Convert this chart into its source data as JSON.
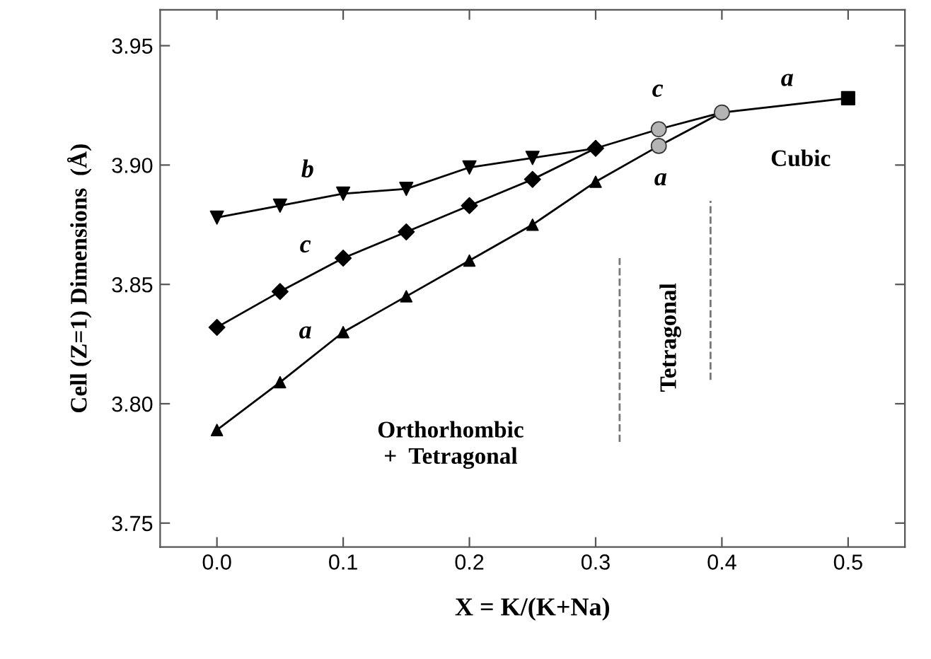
{
  "chart_data": {
    "type": "line",
    "xlabel": "X = K/(K+Na)",
    "ylabel": "Cell (Z=1) Dimensions  (Å)",
    "xlim": [
      -0.045,
      0.545
    ],
    "ylim": [
      3.74,
      3.965
    ],
    "xticks": [
      {
        "value": 0,
        "label": "0.0"
      },
      0.1,
      0.2,
      0.3,
      0.4,
      0.5
    ],
    "yticks": [
      3.75,
      {
        "value": 3.8,
        "label": "3.80"
      },
      3.85,
      {
        "value": 3.9,
        "label": "3.90"
      },
      3.95
    ],
    "grid": false,
    "legend": false,
    "line_style": "solid",
    "series": [
      {
        "color": "#000000",
        "x": [
          0,
          0.05,
          0.1,
          0.15,
          0.2,
          0.25,
          0.3
        ],
        "values": [
          3.878,
          3.883,
          3.888,
          3.89,
          3.899,
          3.903,
          3.907
        ]
      },
      {
        "color": "#000000",
        "x": [
          0,
          0.05,
          0.1,
          0.15,
          0.2,
          0.25,
          0.3,
          0.35,
          0.4
        ],
        "values": [
          3.832,
          3.847,
          3.861,
          3.872,
          3.883,
          3.894,
          3.907,
          3.915,
          3.922
        ]
      },
      {
        "color": "#000000",
        "x": [
          0,
          0.05,
          0.1,
          0.15,
          0.2,
          0.25,
          0.3,
          0.35,
          0.4
        ],
        "values": [
          3.789,
          3.809,
          3.83,
          3.845,
          3.86,
          3.875,
          3.893,
          3.908,
          3.922
        ]
      },
      {
        "color": "#000000",
        "x": [
          0.4,
          0.5
        ],
        "values": [
          3.922,
          3.928
        ]
      },
      {
        "type": "scatter",
        "marker": "triangle_down",
        "color": "#000000",
        "x": [
          0,
          0.05,
          0.1,
          0.15,
          0.2,
          0.25
        ],
        "values": [
          3.878,
          3.883,
          3.888,
          3.89,
          3.899,
          3.903
        ]
      },
      {
        "type": "scatter",
        "marker": "diamond",
        "color": "#000000",
        "x": [
          0,
          0.05,
          0.1,
          0.15,
          0.2,
          0.25,
          0.3
        ],
        "values": [
          3.832,
          3.847,
          3.861,
          3.872,
          3.883,
          3.894,
          3.907
        ]
      },
      {
        "type": "scatter",
        "marker": "triangle",
        "color": "#000000",
        "x": [
          0,
          0.05,
          0.1,
          0.15,
          0.2,
          0.25,
          0.3
        ],
        "values": [
          3.789,
          3.809,
          3.83,
          3.845,
          3.86,
          3.875,
          3.893
        ]
      },
      {
        "type": "scatter",
        "marker": "circle",
        "color": "#b4b4b4",
        "x": [
          0.35,
          0.35,
          0.4
        ],
        "values": [
          3.915,
          3.908,
          3.922
        ]
      },
      {
        "type": "scatter",
        "marker": "square",
        "color": "#000000",
        "x": [
          0.5
        ],
        "values": [
          3.928
        ]
      },
      {
        "color": "#777777",
        "line_style": "dashed",
        "x": [
          0.319,
          0.319
        ],
        "values": [
          3.784,
          3.861
        ]
      },
      {
        "color": "#777777",
        "line_style": "dashed",
        "x": [
          0.391,
          0.391
        ],
        "values": [
          3.81,
          3.885
        ]
      }
    ],
    "annotations": [
      "b",
      "c",
      "a",
      "c",
      "a",
      "a",
      "Cubic",
      "Tetragonal",
      "Orthorhombic\n+  Tetragonal"
    ]
  }
}
